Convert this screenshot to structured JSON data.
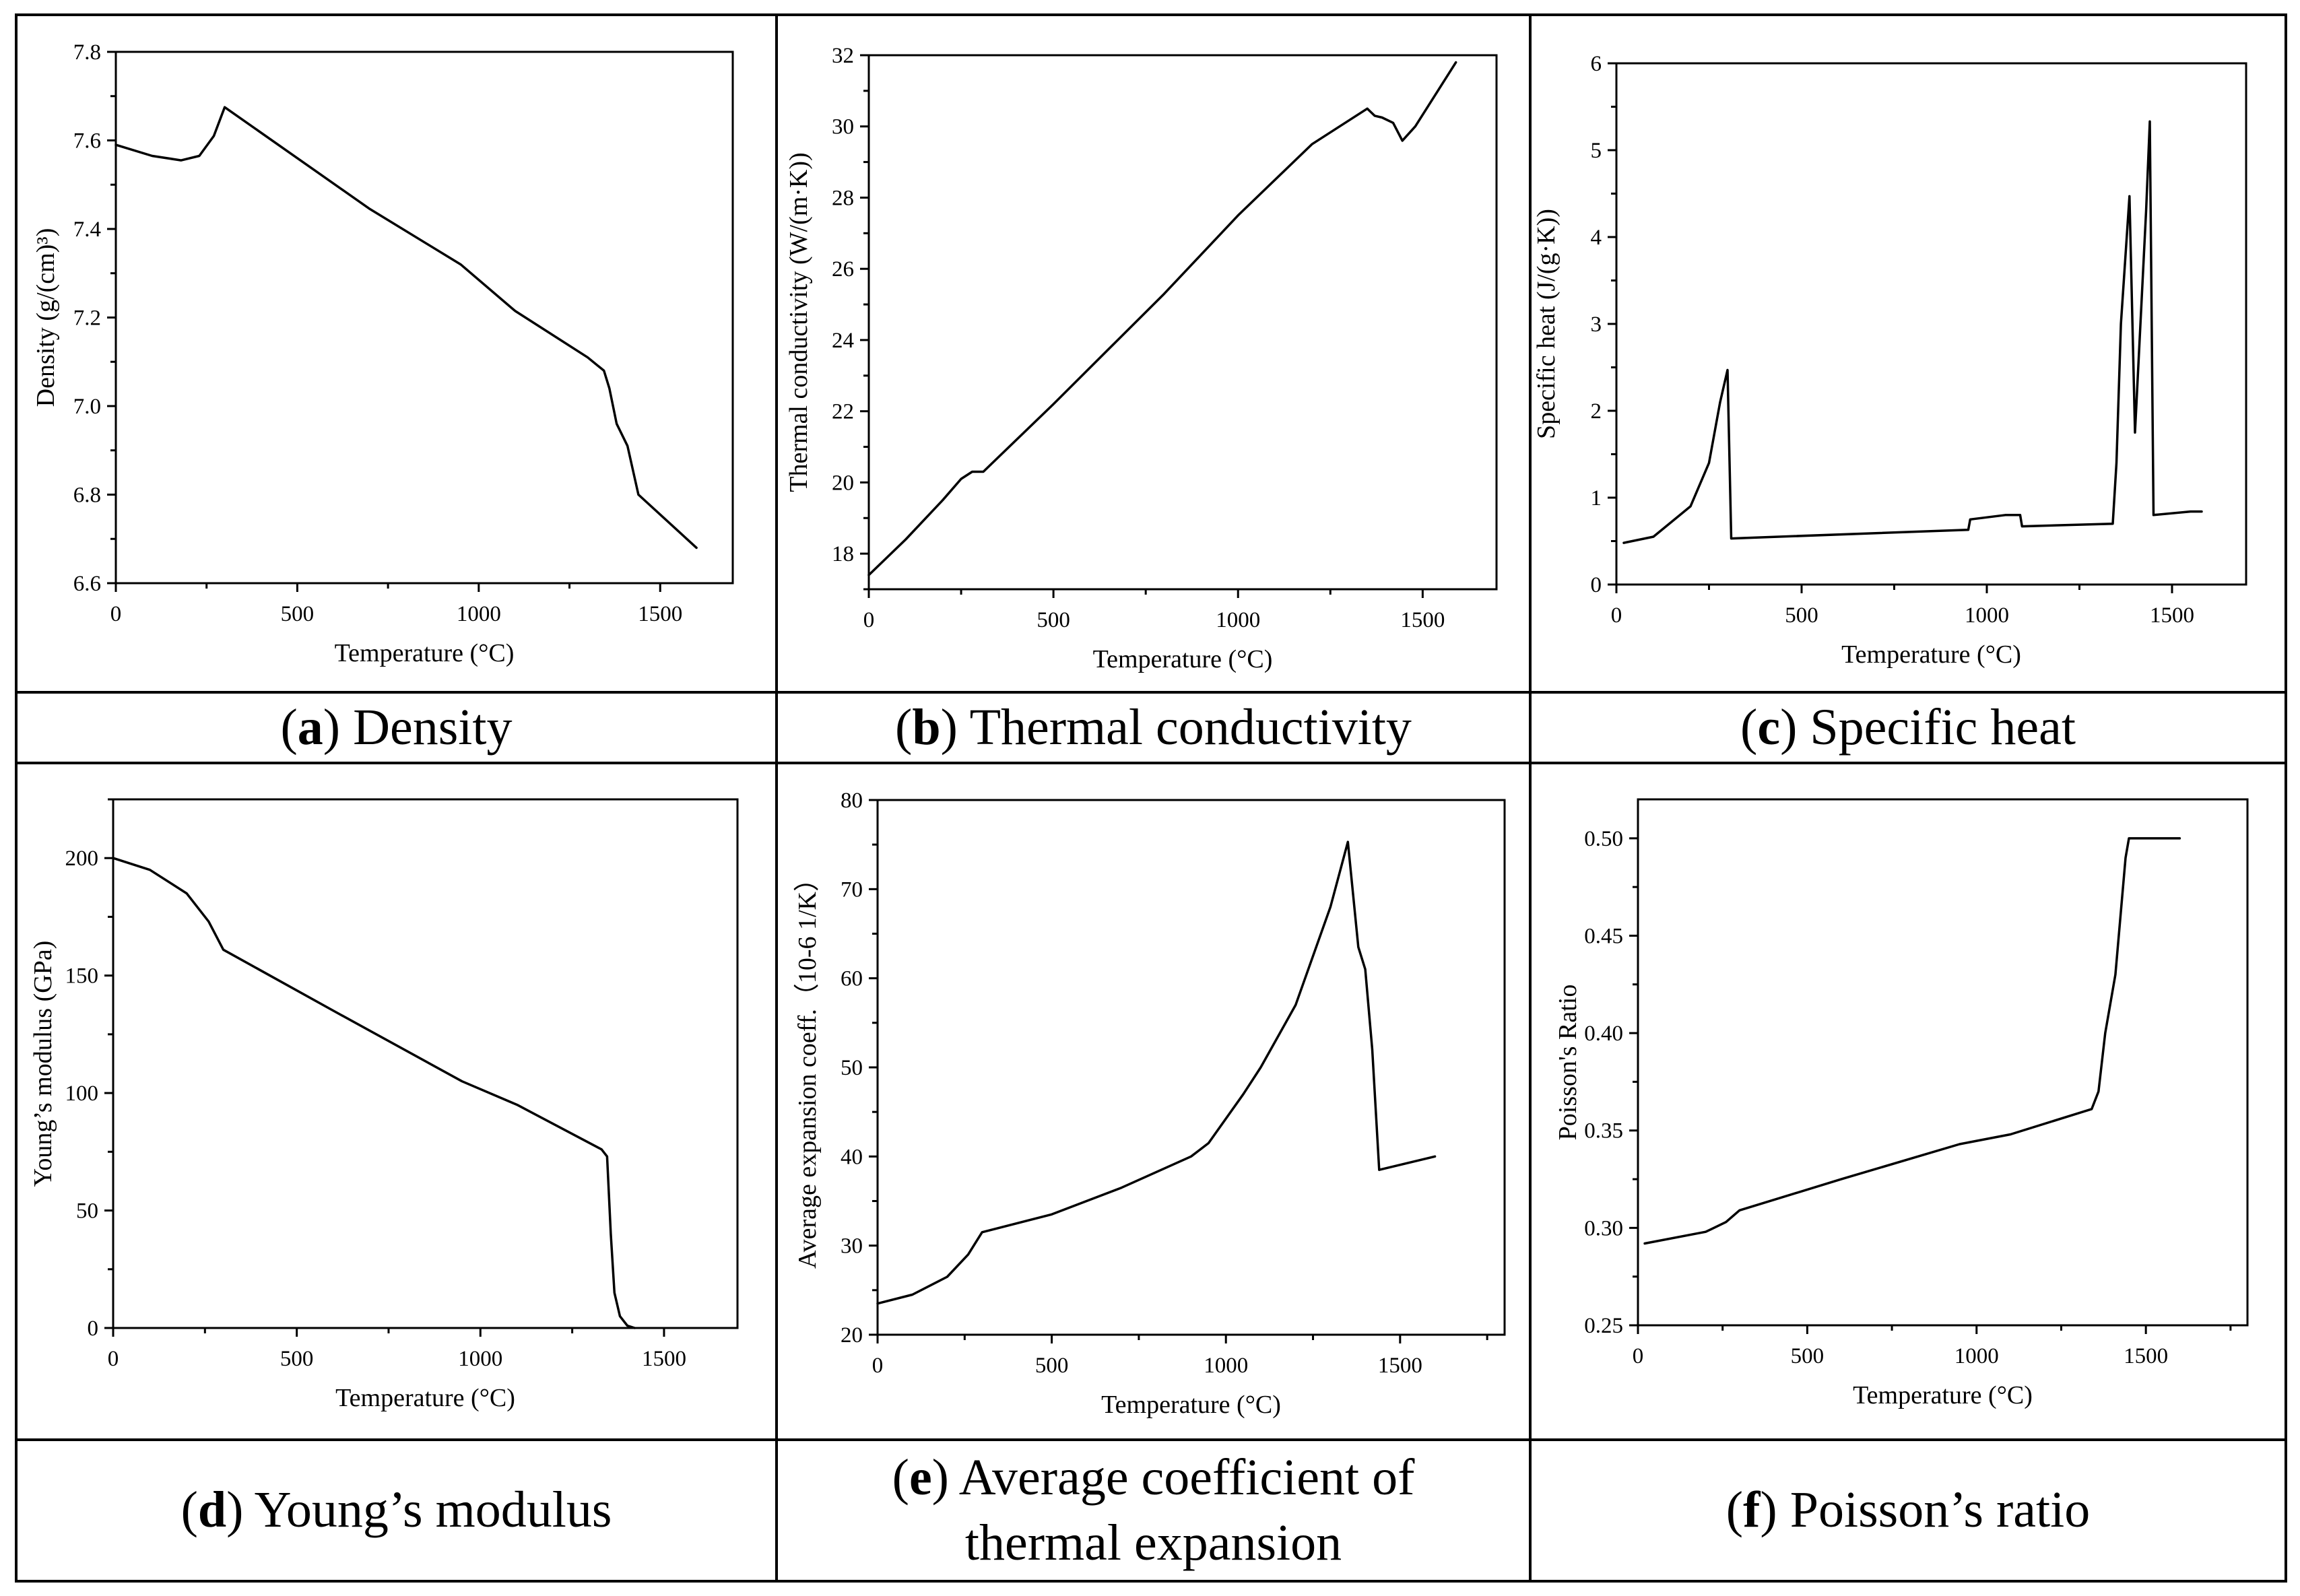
{
  "colors": {
    "line": "#000000",
    "border": "#000000",
    "background": "#ffffff"
  },
  "captions": [
    {
      "letter": "a",
      "text": "Density"
    },
    {
      "letter": "b",
      "text": "Thermal conductivity"
    },
    {
      "letter": "c",
      "text": "Specific heat"
    },
    {
      "letter": "d",
      "text": "Young’s modulus"
    },
    {
      "letter": "e",
      "text": "Average coefficient of thermal expansion",
      "line1": "Average coefficient of",
      "line2": "thermal expansion"
    },
    {
      "letter": "f",
      "text": "Poisson’s ratio"
    }
  ],
  "chart_data": [
    {
      "type": "line",
      "title": "",
      "xlabel": "Temperature (°C)",
      "ylabel": "Density (g/(cm)³)",
      "xlim": [
        0,
        1700
      ],
      "ylim": [
        6.6,
        7.8
      ],
      "xticks": [
        0,
        500,
        1000,
        1500
      ],
      "xtick_labels": [
        "0",
        "500",
        "1000",
        "1500"
      ],
      "yticks": [
        6.6,
        6.8,
        7.0,
        7.2,
        7.4,
        7.6,
        7.8
      ],
      "ytick_labels": [
        "6.6",
        "6.8",
        "7.0",
        "7.2",
        "7.4",
        "7.6",
        "7.8"
      ],
      "x": [
        0,
        100,
        180,
        230,
        270,
        300,
        500,
        700,
        950,
        1100,
        1300,
        1345,
        1360,
        1380,
        1410,
        1440,
        1600
      ],
      "y": [
        7.59,
        7.565,
        7.555,
        7.565,
        7.61,
        7.675,
        7.56,
        7.445,
        7.32,
        7.215,
        7.11,
        7.08,
        7.04,
        6.96,
        6.91,
        6.8,
        6.68
      ]
    },
    {
      "type": "line",
      "title": "",
      "xlabel": "Temperature (°C)",
      "ylabel": "Thermal conductivity (W/(m·K))",
      "xlim": [
        0,
        1700
      ],
      "ylim": [
        17,
        32
      ],
      "xticks": [
        0,
        500,
        1000,
        1500
      ],
      "xtick_labels": [
        "0",
        "500",
        "1000",
        "1500"
      ],
      "yticks": [
        18,
        20,
        22,
        24,
        26,
        28,
        30,
        32
      ],
      "ytick_labels": [
        "18",
        "20",
        "22",
        "24",
        "26",
        "28",
        "30",
        "32"
      ],
      "x": [
        0,
        100,
        200,
        250,
        280,
        310,
        500,
        800,
        1000,
        1200,
        1350,
        1370,
        1390,
        1420,
        1445,
        1480,
        1590
      ],
      "y": [
        17.4,
        18.4,
        19.5,
        20.1,
        20.3,
        20.3,
        22.2,
        25.3,
        27.5,
        29.5,
        30.5,
        30.3,
        30.25,
        30.1,
        29.6,
        30.0,
        31.8
      ]
    },
    {
      "type": "line",
      "title": "",
      "xlabel": "Temperature (°C)",
      "ylabel": "Specific heat (J/(g·K))",
      "xlim": [
        0,
        1700
      ],
      "ylim": [
        0,
        6
      ],
      "xticks": [
        0,
        500,
        1000,
        1500
      ],
      "xtick_labels": [
        "0",
        "500",
        "1000",
        "1500"
      ],
      "yticks": [
        0,
        1,
        2,
        3,
        4,
        5,
        6
      ],
      "ytick_labels": [
        "0",
        "1",
        "2",
        "3",
        "4",
        "5",
        "6"
      ],
      "x": [
        20,
        100,
        200,
        250,
        280,
        300,
        310,
        950,
        955,
        1050,
        1090,
        1095,
        1340,
        1350,
        1362,
        1385,
        1400,
        1430,
        1440,
        1450,
        1550,
        1580
      ],
      "y": [
        0.48,
        0.55,
        0.9,
        1.4,
        2.1,
        2.47,
        0.53,
        0.63,
        0.75,
        0.8,
        0.8,
        0.67,
        0.7,
        1.4,
        3.0,
        4.47,
        1.75,
        4.3,
        5.33,
        0.8,
        0.84,
        0.84
      ]
    },
    {
      "type": "line",
      "title": "",
      "xlabel": "Temperature (°C)",
      "ylabel": "Young’s modulus (GPa)",
      "xlim": [
        0,
        1700
      ],
      "ylim": [
        0,
        225
      ],
      "xticks": [
        0,
        500,
        1000,
        1500
      ],
      "xtick_labels": [
        "0",
        "500",
        "1000",
        "1500"
      ],
      "yticks": [
        0,
        50,
        100,
        150,
        200
      ],
      "ytick_labels": [
        "0",
        "50",
        "100",
        "150",
        "200"
      ],
      "x": [
        0,
        100,
        200,
        260,
        300,
        600,
        950,
        1100,
        1330,
        1345,
        1355,
        1365,
        1380,
        1400,
        1420
      ],
      "y": [
        200,
        195,
        185,
        173,
        161,
        135,
        105,
        95,
        76,
        73,
        40,
        15,
        5,
        1,
        0
      ]
    },
    {
      "type": "line",
      "title": "",
      "xlabel": "Temperature (°C)",
      "ylabel": "Average expansion coeff.（10-6  1/K）",
      "xlim": [
        0,
        1800
      ],
      "ylim": [
        20,
        80
      ],
      "xticks": [
        0,
        500,
        1000,
        1500
      ],
      "xtick_labels": [
        "0",
        "500",
        "1000",
        "1500"
      ],
      "yticks": [
        20,
        30,
        40,
        50,
        60,
        70,
        80
      ],
      "ytick_labels": [
        "20",
        "30",
        "40",
        "50",
        "60",
        "70",
        "80"
      ],
      "x": [
        0,
        100,
        200,
        260,
        300,
        500,
        700,
        900,
        950,
        1050,
        1100,
        1200,
        1300,
        1350,
        1380,
        1400,
        1420,
        1440,
        1600
      ],
      "y": [
        23.5,
        24.5,
        26.5,
        29,
        31.5,
        33.5,
        36.5,
        40,
        41.5,
        47,
        50,
        57,
        68,
        75.3,
        63.5,
        61,
        52,
        38.5,
        40
      ]
    },
    {
      "type": "line",
      "title": "",
      "xlabel": "Temperature (°C)",
      "ylabel": "Poisson's Ratio",
      "xlim": [
        0,
        1800
      ],
      "ylim": [
        0.25,
        0.52
      ],
      "xticks": [
        0,
        500,
        1000,
        1500
      ],
      "xtick_labels": [
        "0",
        "500",
        "1000",
        "1500"
      ],
      "yticks": [
        0.25,
        0.3,
        0.35,
        0.4,
        0.45,
        0.5
      ],
      "ytick_labels": [
        "0.25",
        "0.30",
        "0.35",
        "0.40",
        "0.45",
        "0.50"
      ],
      "x": [
        20,
        200,
        260,
        300,
        600,
        950,
        1100,
        1340,
        1360,
        1380,
        1410,
        1440,
        1450,
        1600
      ],
      "y": [
        0.292,
        0.298,
        0.303,
        0.309,
        0.325,
        0.343,
        0.348,
        0.361,
        0.37,
        0.4,
        0.43,
        0.49,
        0.5,
        0.5
      ]
    }
  ]
}
